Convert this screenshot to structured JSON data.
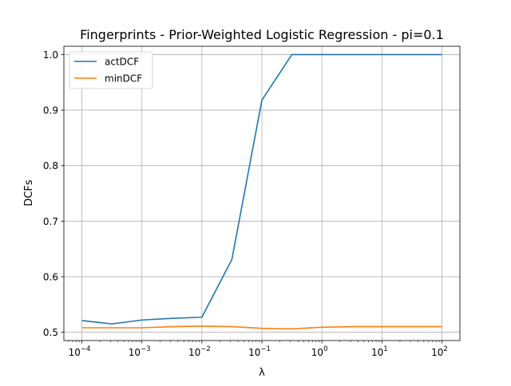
{
  "chart_data": {
    "type": "line",
    "title": "Fingerprints - Prior-Weighted Logistic Regression - pi=0.1",
    "xlabel": "λ",
    "ylabel": "DCFs",
    "xscale": "log",
    "xlim_exp": [
      -4.3,
      2.3
    ],
    "ylim": [
      0.485,
      1.015
    ],
    "grid": true,
    "legend_position": "top-left",
    "x_ticks": [
      {
        "value": 0.0001,
        "base": "10",
        "exp": "−4"
      },
      {
        "value": 0.001,
        "base": "10",
        "exp": "−3"
      },
      {
        "value": 0.01,
        "base": "10",
        "exp": "−2"
      },
      {
        "value": 0.1,
        "base": "10",
        "exp": "−1"
      },
      {
        "value": 1,
        "base": "10",
        "exp": "0"
      },
      {
        "value": 10,
        "base": "10",
        "exp": "1"
      },
      {
        "value": 100,
        "base": "10",
        "exp": "2"
      }
    ],
    "y_ticks": [
      "0.5",
      "0.6",
      "0.7",
      "0.8",
      "0.9",
      "1.0"
    ],
    "x": [
      0.0001,
      0.000316,
      0.001,
      0.00316,
      0.01,
      0.0316,
      0.1,
      0.316,
      1,
      3.16,
      10,
      31.6,
      100
    ],
    "series": [
      {
        "name": "actDCF",
        "color": "#1f77b4",
        "values": [
          0.521,
          0.515,
          0.522,
          0.525,
          0.527,
          0.631,
          0.918,
          1.0,
          1.0,
          1.0,
          1.0,
          1.0,
          1.0
        ]
      },
      {
        "name": "minDCF",
        "color": "#ff7f0e",
        "values": [
          0.508,
          0.508,
          0.508,
          0.51,
          0.511,
          0.51,
          0.507,
          0.506,
          0.509,
          0.51,
          0.51,
          0.51,
          0.51
        ]
      }
    ]
  }
}
